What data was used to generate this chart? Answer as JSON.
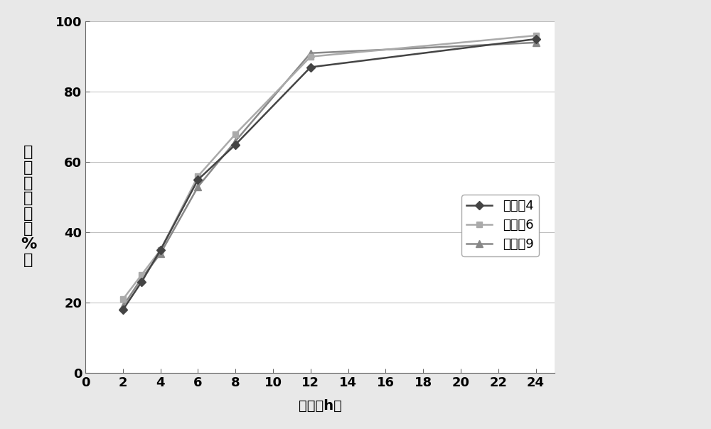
{
  "series": [
    {
      "label": "实施例4",
      "x": [
        2,
        3,
        4,
        6,
        8,
        12,
        24
      ],
      "y": [
        18,
        26,
        35,
        55,
        65,
        87,
        95
      ],
      "color": "#444444",
      "marker": "D",
      "markersize": 6,
      "linewidth": 1.8,
      "zorder": 3
    },
    {
      "label": "实施例6",
      "x": [
        2,
        3,
        4,
        6,
        8,
        12,
        24
      ],
      "y": [
        21,
        28,
        35,
        56,
        68,
        90,
        96
      ],
      "color": "#aaaaaa",
      "marker": "s",
      "markersize": 6,
      "linewidth": 1.8,
      "zorder": 2
    },
    {
      "label": "实施例9",
      "x": [
        2,
        3,
        4,
        6,
        8,
        12,
        24
      ],
      "y": [
        19,
        27,
        34,
        53,
        66,
        91,
        94
      ],
      "color": "#888888",
      "marker": "^",
      "markersize": 7,
      "linewidth": 1.8,
      "zorder": 1
    }
  ],
  "xlabel": "时间（h）",
  "ylabel_chars": [
    "累",
    "积",
    "溶",
    "出",
    "度",
    "（",
    "%",
    "）"
  ],
  "xlim": [
    0,
    25
  ],
  "ylim": [
    0,
    100
  ],
  "xticks": [
    0,
    2,
    4,
    6,
    8,
    10,
    12,
    14,
    16,
    18,
    20,
    22,
    24
  ],
  "yticks": [
    0,
    20,
    40,
    60,
    80,
    100
  ],
  "background_color": "#ffffff",
  "axis_fontsize": 14,
  "tick_fontsize": 13,
  "ylabel_fontsize": 16
}
